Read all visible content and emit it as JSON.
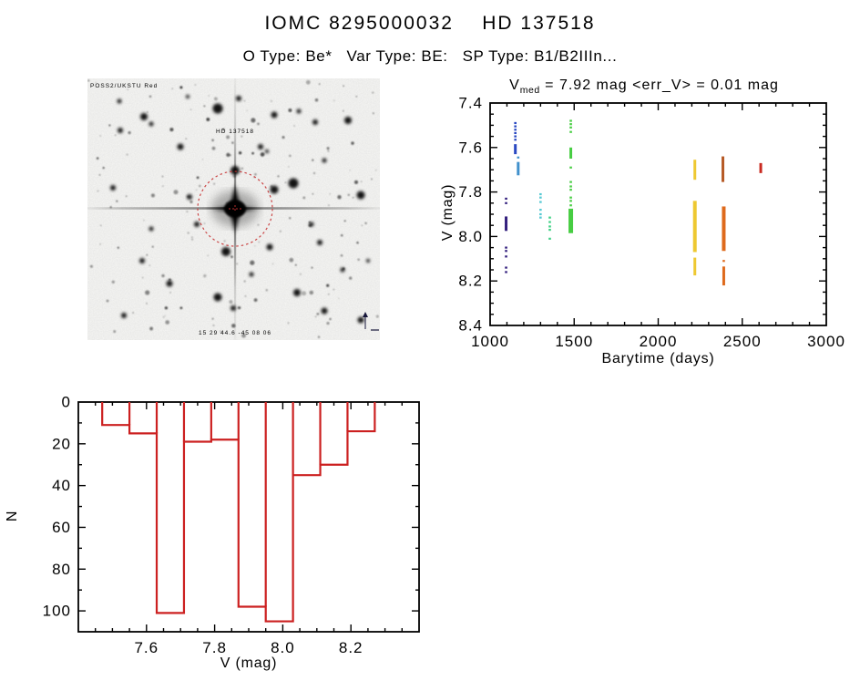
{
  "header": {
    "title": "IOMC 8295000032    HD 137518",
    "subtitle": "O Type: Be*   Var Type: BE:   SP Type: B1/B2IIIn..."
  },
  "finder_chart": {
    "credit_label": "POSS2/UKSTU Red",
    "target_label": "HD 137518",
    "coords_label": "15 29 44.6  -45 08 06",
    "marker_color": "#c63333",
    "annotation_color": "#3b3bb0"
  },
  "chart_data": [
    {
      "type": "scatter",
      "title": "V_med = 7.92 mag <err_V> = 0.01 mag",
      "title_parts": {
        "base": "V",
        "sub": "med",
        "rest": " = 7.92 mag <err_V> = 0.01 mag"
      },
      "xlabel": "Barytime (days)",
      "ylabel": "V (mag)",
      "xlim": [
        1000,
        3000
      ],
      "ylim": [
        7.4,
        8.4
      ],
      "y_inverted": true,
      "x_ticks": [
        [
          1000,
          "1000"
        ],
        [
          1500,
          "1500"
        ],
        [
          2000,
          "2000"
        ],
        [
          2500,
          "2500"
        ],
        [
          3000,
          "3000"
        ]
      ],
      "y_ticks": [
        [
          7.4,
          "7.4"
        ],
        [
          7.6,
          "7.6"
        ],
        [
          7.8,
          "7.8"
        ],
        [
          8.0,
          "8.0"
        ],
        [
          8.2,
          "8.2"
        ],
        [
          8.4,
          "8.4"
        ]
      ],
      "x_minor_step": 100,
      "y_minor_step": 0.05,
      "clusters": [
        {
          "name": "epoch-1",
          "x": 1095,
          "color": "#34217e",
          "dots": [
            7.83,
            7.85,
            8.05,
            8.065,
            8.09,
            8.14,
            8.16
          ],
          "bars": [
            [
              7.91,
              7.975
            ]
          ]
        },
        {
          "name": "epoch-2",
          "x": 1150,
          "color": "#2a49c2",
          "dots": [
            7.49,
            7.505,
            7.52,
            7.535,
            7.55,
            7.565
          ],
          "bars": [
            [
              7.585,
              7.63
            ]
          ]
        },
        {
          "name": "epoch-3",
          "x": 1167,
          "color": "#4191cc",
          "dots": [
            7.645
          ],
          "bars": [
            [
              7.665,
              7.725
            ]
          ]
        },
        {
          "name": "epoch-4",
          "x": 1300,
          "color": "#57c9d4",
          "dots": [
            7.81,
            7.825,
            7.845,
            7.88,
            7.9,
            7.915
          ],
          "bars": []
        },
        {
          "name": "epoch-5",
          "x": 1355,
          "color": "#3ed084",
          "dots": [
            7.915,
            7.935,
            7.955,
            7.97,
            8.01
          ],
          "bars": []
        },
        {
          "name": "epoch-6",
          "x": 1480,
          "color": "#47cd42",
          "dots": [
            7.48,
            7.495,
            7.51,
            7.53,
            7.69,
            7.755,
            7.775,
            7.79,
            7.825,
            7.84,
            7.86
          ],
          "bars": [
            [
              7.6,
              7.65
            ],
            [
              7.875,
              7.985,
              5
            ]
          ]
        },
        {
          "name": "epoch-7",
          "x": 2218,
          "color": "#eec831",
          "dots": [
            7.875,
            7.905,
            7.95
          ],
          "bars": [
            [
              7.655,
              7.745
            ],
            [
              7.84,
              8.07,
              4
            ],
            [
              8.095,
              8.175
            ]
          ]
        },
        {
          "name": "epoch-8",
          "x": 2385,
          "color": "#b65a26",
          "dots": [],
          "bars": [
            [
              7.64,
              7.755
            ]
          ]
        },
        {
          "name": "epoch-9",
          "x": 2390,
          "color": "#de6a1c",
          "dots": [
            8.11
          ],
          "bars": [
            [
              7.865,
              8.065,
              4
            ],
            [
              8.135,
              8.22
            ]
          ]
        },
        {
          "name": "epoch-10",
          "x": 2610,
          "color": "#c92a20",
          "dots": [],
          "bars": [
            [
              7.67,
              7.715
            ]
          ]
        }
      ]
    },
    {
      "type": "bar",
      "title": "",
      "xlabel": "V (mag)",
      "ylabel": "N",
      "xlim": [
        7.4,
        8.4
      ],
      "ylim": [
        0,
        110
      ],
      "x_ticks": [
        [
          7.6,
          "7.6"
        ],
        [
          7.8,
          "7.8"
        ],
        [
          8.0,
          "8.0"
        ],
        [
          8.2,
          "8.2"
        ]
      ],
      "y_ticks": [
        [
          0,
          "0"
        ],
        [
          20,
          "20"
        ],
        [
          40,
          "40"
        ],
        [
          60,
          "60"
        ],
        [
          80,
          "80"
        ],
        [
          100,
          "100"
        ]
      ],
      "x_minor_step": 0.05,
      "y_minor_step": 10,
      "bin_edges": [
        7.47,
        7.55,
        7.63,
        7.71,
        7.79,
        7.87,
        7.95,
        8.03,
        8.11,
        8.19,
        8.27
      ],
      "values": [
        11,
        15,
        101,
        19,
        18,
        98,
        105,
        35,
        30,
        14
      ],
      "color": "#cc2020"
    }
  ]
}
